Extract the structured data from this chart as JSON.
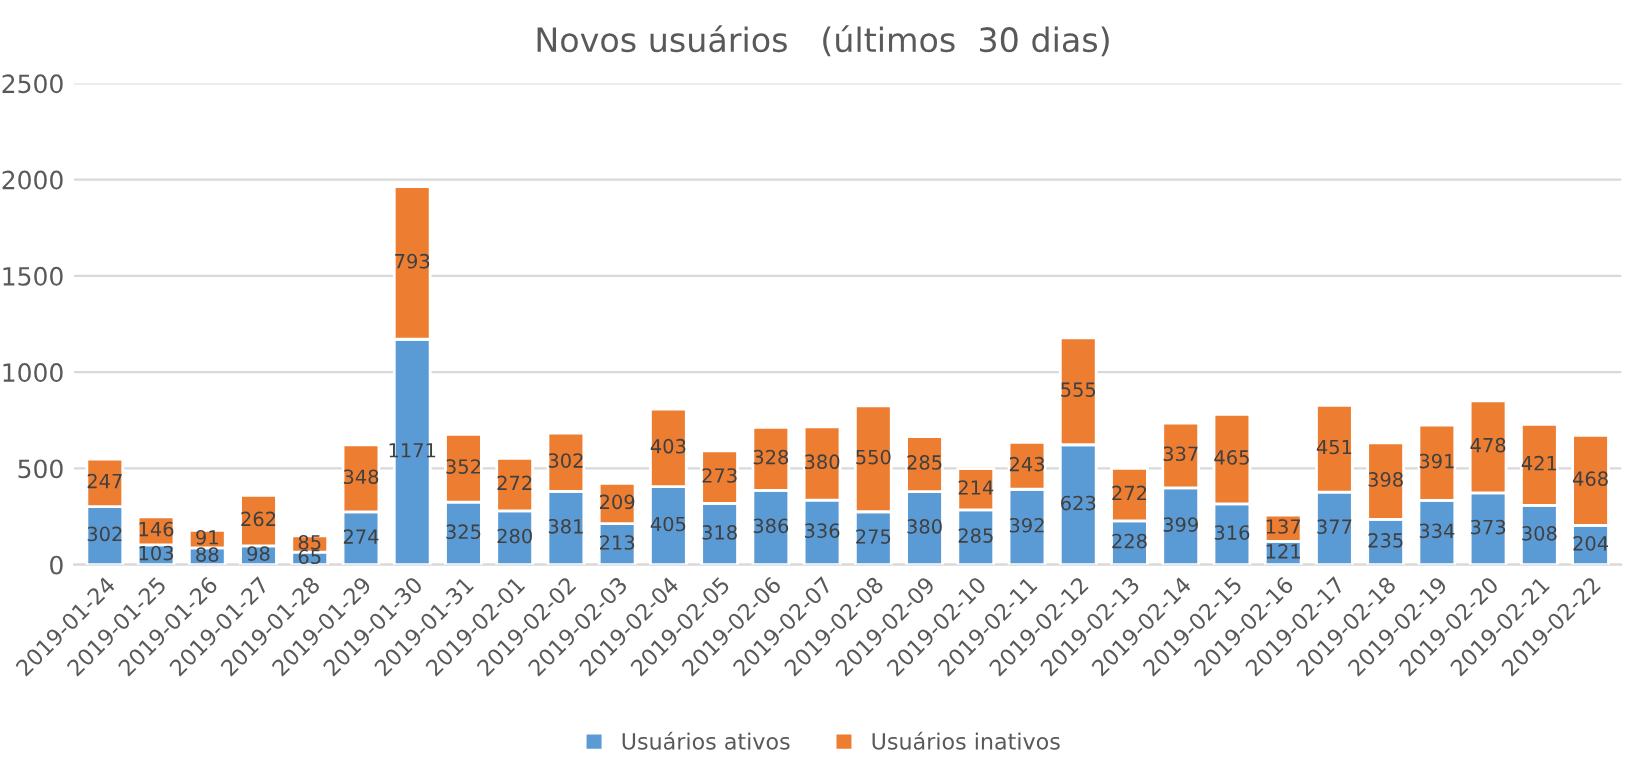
{
  "chart_data": {
    "type": "bar",
    "title": "Novos usuários   (últimos  30 dias)",
    "stacked": true,
    "data_labels": true,
    "grid": "y",
    "legend": "bottom",
    "categories": [
      "2019-01-24",
      "2019-01-25",
      "2019-01-26",
      "2019-01-27",
      "2019-01-28",
      "2019-01-29",
      "2019-01-30",
      "2019-01-31",
      "2019-02-01",
      "2019-02-02",
      "2019-02-03",
      "2019-02-04",
      "2019-02-05",
      "2019-02-06",
      "2019-02-07",
      "2019-02-08",
      "2019-02-09",
      "2019-02-10",
      "2019-02-11",
      "2019-02-12",
      "2019-02-13",
      "2019-02-14",
      "2019-02-15",
      "2019-02-16",
      "2019-02-17",
      "2019-02-18",
      "2019-02-19",
      "2019-02-20",
      "2019-02-21",
      "2019-02-22"
    ],
    "ylim": [
      0,
      2500
    ],
    "yticks": [
      0,
      500,
      1000,
      1500,
      2000,
      2500
    ],
    "series": [
      {
        "name": "Usuários ativos",
        "color": "#5b9bd5",
        "values": [
          302,
          103,
          88,
          98,
          65,
          274,
          1171,
          325,
          280,
          381,
          213,
          405,
          318,
          386,
          336,
          275,
          380,
          285,
          392,
          623,
          228,
          399,
          316,
          121,
          377,
          235,
          334,
          373,
          308,
          204
        ]
      },
      {
        "name": "Usuários inativos",
        "color": "#ed7d31",
        "values": [
          247,
          146,
          91,
          262,
          85,
          348,
          793,
          352,
          272,
          302,
          209,
          403,
          273,
          328,
          380,
          550,
          285,
          214,
          243,
          555,
          272,
          337,
          465,
          137,
          451,
          398,
          391,
          478,
          421,
          468
        ]
      }
    ]
  }
}
